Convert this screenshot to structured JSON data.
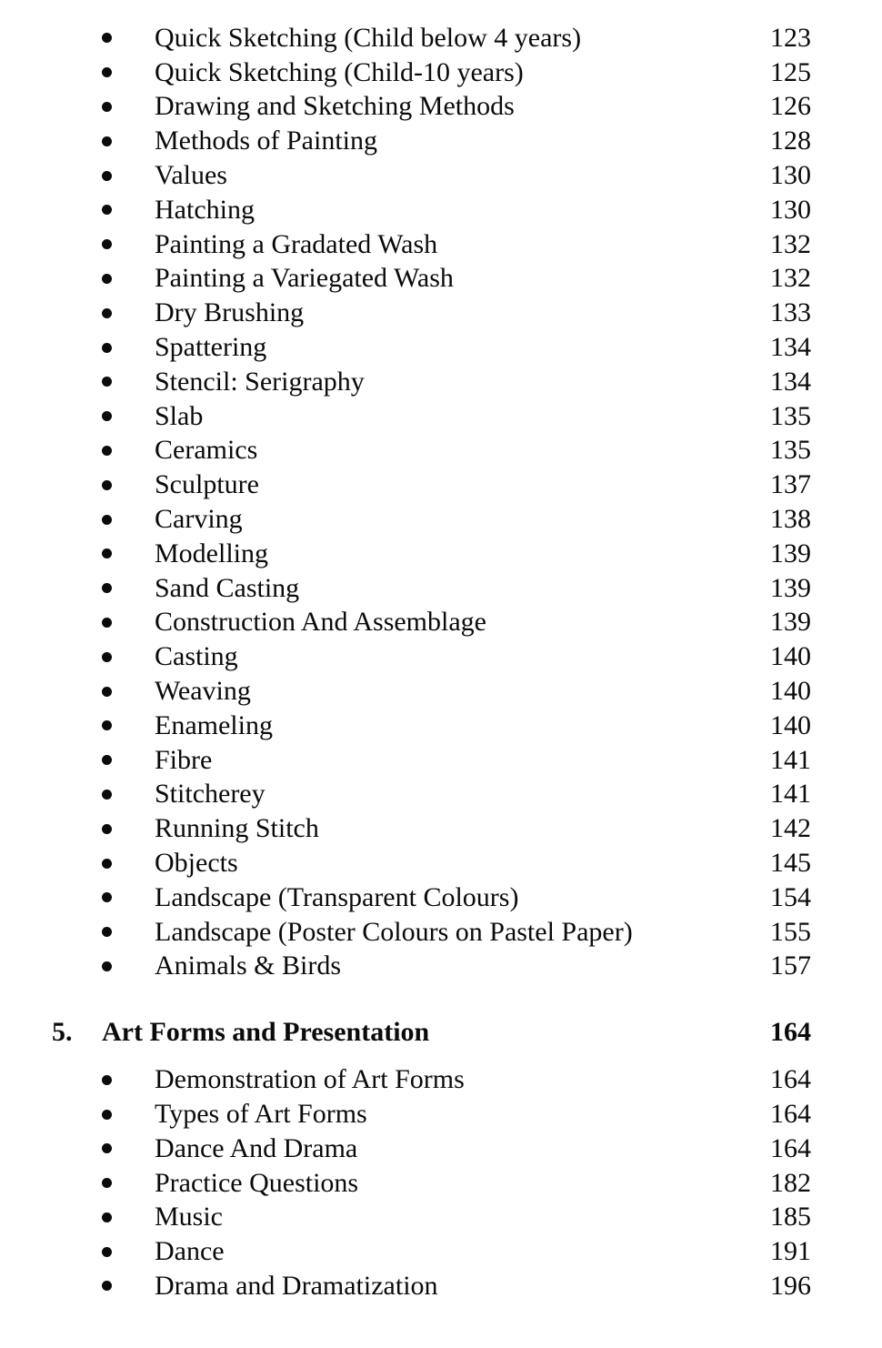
{
  "page": {
    "background": "#ffffff",
    "text_color": "#0b0b0b"
  },
  "toc": {
    "main_items": [
      {
        "label": "Quick Sketching (Child below 4 years)",
        "page": "123"
      },
      {
        "label": "Quick Sketching (Child-10 years)",
        "page": "125"
      },
      {
        "label": "Drawing and Sketching Methods",
        "page": "126"
      },
      {
        "label": "Methods of Painting",
        "page": "128"
      },
      {
        "label": "Values",
        "page": "130"
      },
      {
        "label": "Hatching",
        "page": "130"
      },
      {
        "label": "Painting a Gradated Wash",
        "page": "132"
      },
      {
        "label": "Painting a Variegated Wash",
        "page": "132"
      },
      {
        "label": "Dry Brushing",
        "page": "133"
      },
      {
        "label": "Spattering",
        "page": "134"
      },
      {
        "label": "Stencil: Serigraphy",
        "page": "134"
      },
      {
        "label": "Slab",
        "page": "135"
      },
      {
        "label": "Ceramics",
        "page": "135"
      },
      {
        "label": "Sculpture",
        "page": "137"
      },
      {
        "label": "Carving",
        "page": "138"
      },
      {
        "label": "Modelling",
        "page": "139"
      },
      {
        "label": "Sand Casting",
        "page": "139"
      },
      {
        "label": "Construction And Assemblage",
        "page": "139"
      },
      {
        "label": "Casting",
        "page": "140"
      },
      {
        "label": "Weaving",
        "page": "140"
      },
      {
        "label": "Enameling",
        "page": "140"
      },
      {
        "label": "Fibre",
        "page": "141"
      },
      {
        "label": "Stitcherey",
        "page": "141"
      },
      {
        "label": "Running Stitch",
        "page": "142"
      },
      {
        "label": "Objects",
        "page": "145"
      },
      {
        "label": "Landscape (Transparent Colours)",
        "page": "154"
      },
      {
        "label": "Landscape (Poster Colours on Pastel Paper)",
        "page": "155"
      },
      {
        "label": "Animals & Birds",
        "page": "157"
      }
    ],
    "chapter": {
      "number": "5.",
      "title": "Art Forms and Presentation",
      "page": "164"
    },
    "chapter_items": [
      {
        "label": "Demonstration of Art Forms",
        "page": "164"
      },
      {
        "label": "Types of Art Forms",
        "page": "164"
      },
      {
        "label": "Dance And Drama",
        "page": "164"
      },
      {
        "label": "Practice Questions",
        "page": "182"
      },
      {
        "label": "Music",
        "page": "185"
      },
      {
        "label": "Dance",
        "page": "191"
      },
      {
        "label": "Drama and Dramatization",
        "page": "196"
      }
    ]
  }
}
